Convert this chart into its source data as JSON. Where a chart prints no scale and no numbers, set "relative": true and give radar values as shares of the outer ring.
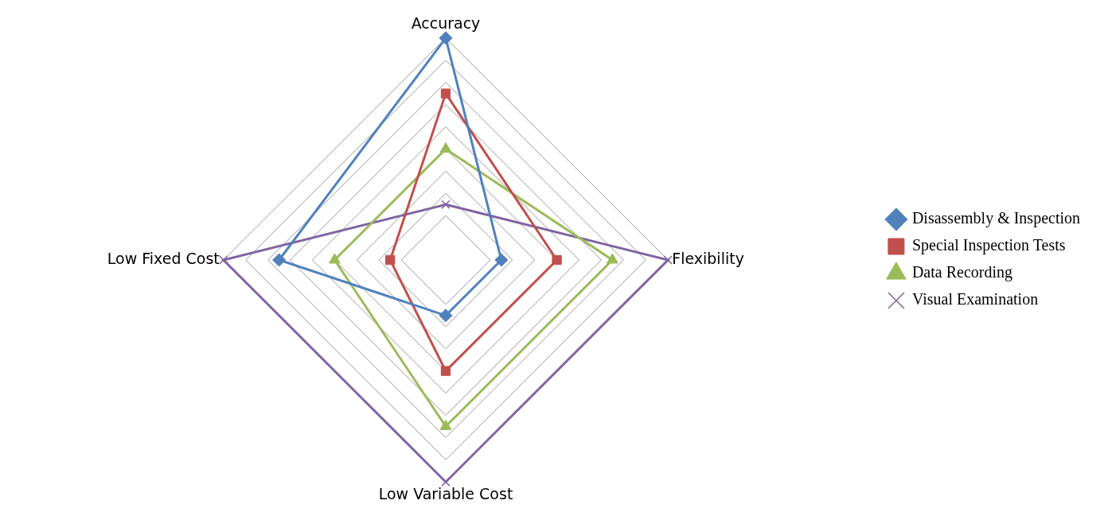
{
  "chart_data": {
    "type": "radar",
    "relative": true,
    "categories": [
      "Accuracy",
      "Flexibility",
      "Low Variable Cost",
      "Low Fixed Cost"
    ],
    "series": [
      {
        "name": "Disassembly & Inspection",
        "color": "#4f81bd",
        "marker": "diamond",
        "values": [
          1,
          0.25,
          0.25,
          0.75
        ]
      },
      {
        "name": "Special Inspection Tests",
        "color": "#c0504d",
        "marker": "square",
        "values": [
          0.75,
          0.5,
          0.5,
          0.25
        ]
      },
      {
        "name": "Data Recording",
        "color": "#9bbb59",
        "marker": "triangle",
        "values": [
          0.5,
          0.75,
          0.75,
          0.5
        ]
      },
      {
        "name": "Visual Examination",
        "color": "#8064a2",
        "marker": "cross",
        "values": [
          0.25,
          1,
          1,
          1
        ]
      }
    ],
    "grid": true,
    "legend": "right"
  }
}
